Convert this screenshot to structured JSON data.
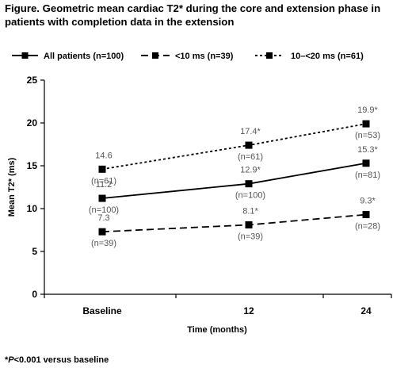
{
  "chart_data": {
    "type": "line",
    "title": "Figure. Geometric mean cardiac T2* during the core and extension phase in patients with completion data in the extension",
    "xlabel": "Time (months)",
    "ylabel": "Mean T2* (ms)",
    "categories": [
      "Baseline",
      "12",
      "24"
    ],
    "ylim": [
      0,
      25
    ],
    "yticks": [
      "0",
      "5",
      "10",
      "15",
      "20",
      "25"
    ],
    "legend_position": "top",
    "series": [
      {
        "name": "All patients (n=100)",
        "style": "solid",
        "color": "#000000",
        "values": [
          11.2,
          12.9,
          15.3
        ],
        "value_labels": [
          "11.2",
          "12.9*",
          "15.3*"
        ],
        "n_labels": [
          "(n=100)",
          "(n=100)",
          "(n=81)"
        ]
      },
      {
        "name": "<10 ms (n=39)",
        "style": "dashed",
        "color": "#000000",
        "values": [
          7.3,
          8.1,
          9.3
        ],
        "value_labels": [
          "7.3",
          "8.1*",
          "9.3*"
        ],
        "n_labels": [
          "(n=39)",
          "(n=39)",
          "(n=28)"
        ]
      },
      {
        "name": "10–<20 ms (n=61)",
        "style": "dotted",
        "color": "#000000",
        "values": [
          14.6,
          17.4,
          19.9
        ],
        "value_labels": [
          "14.6",
          "17.4*",
          "19.9*"
        ],
        "n_labels": [
          "(n=61)",
          "(n=61)",
          "(n=53)"
        ]
      }
    ],
    "footnote_prefix": "*",
    "footnote_italic": "P",
    "footnote_rest": "<0.001 versus baseline"
  },
  "colors": {
    "label_gray": "#555555",
    "axis": "#000000"
  }
}
